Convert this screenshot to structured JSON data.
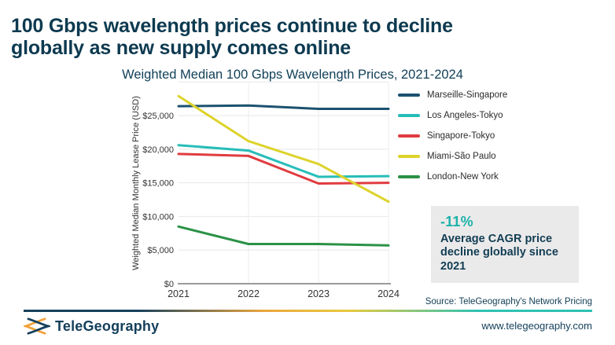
{
  "header": {
    "title_line1": "100 Gbps wavelength prices continue to decline",
    "title_line2": "globally as new supply comes online",
    "subtitle": "Weighted Median 100 Gbps Wavelength Prices, 2021-2024"
  },
  "chart_data": {
    "type": "line",
    "title": "Weighted Median 100 Gbps Wavelength Prices, 2021-2024",
    "x": [
      2021,
      2022,
      2023,
      2024
    ],
    "x_tick_labels": [
      "2021",
      "2022",
      "2023",
      "2024"
    ],
    "ylabel": "Weighted Median Monthly Lease Price (USD)",
    "ylim": [
      0,
      30000
    ],
    "y_ticks": [
      0,
      5000,
      10000,
      15000,
      20000,
      25000
    ],
    "y_tick_labels": [
      "$0",
      "$5,000",
      "$10,000",
      "$15,000",
      "$20,000",
      "$25,000"
    ],
    "gridline_step": 5000,
    "grid": true,
    "legend_position": "right",
    "series": [
      {
        "name": "Marseille-Singapore",
        "color": "#1b5270",
        "values": [
          26400,
          26500,
          26000,
          26000
        ]
      },
      {
        "name": "Los Angeles-Tokyo",
        "color": "#27bdb9",
        "values": [
          20600,
          19800,
          15900,
          16000
        ]
      },
      {
        "name": "Singapore-Tokyo",
        "color": "#e03c40",
        "values": [
          19300,
          19000,
          14900,
          15000
        ]
      },
      {
        "name": "Miami-São Paulo",
        "color": "#ddd32b",
        "values": [
          27900,
          21200,
          17800,
          12200
        ]
      },
      {
        "name": "London-New York",
        "color": "#2b9246",
        "values": [
          8500,
          5900,
          5900,
          5700
        ]
      }
    ]
  },
  "callout": {
    "stat": "-11%",
    "text": "Average CAGR price decline globally since 2021",
    "stat_color": "#1cb2ab"
  },
  "source": "Source: TeleGeography's Network Pricing",
  "footer": {
    "brand": "TeleGeography",
    "url": "www.telegeography.com"
  },
  "colors": {
    "title_navy": "#0d3a50",
    "brand_navy": "#14405c",
    "brand_orange": "#f2a33c",
    "accent_teal": "#1cb2ab",
    "callout_bg": "#ebeaea",
    "gridline": "#e7e7e7",
    "axis_line": "#9b9b9b",
    "axis_text": "#333333"
  }
}
